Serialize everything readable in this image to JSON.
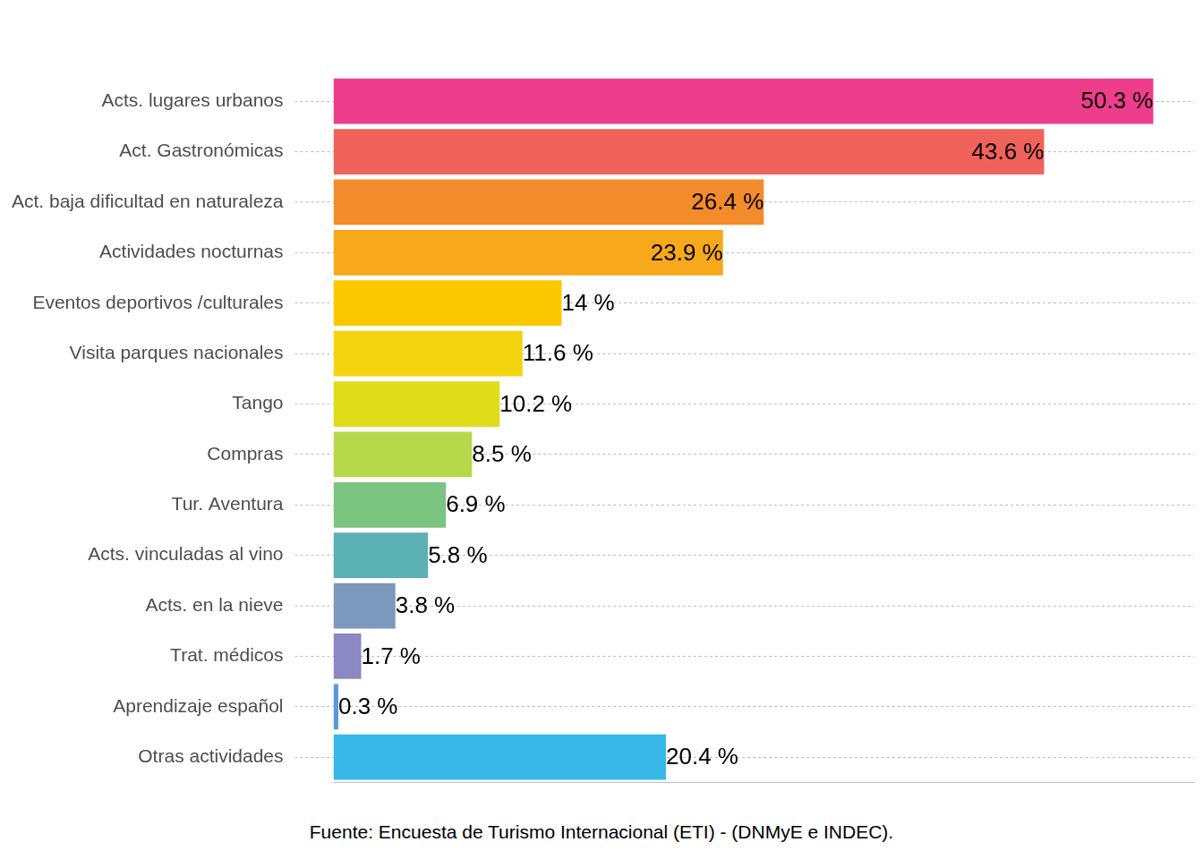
{
  "chart_data": {
    "type": "bar",
    "orientation": "horizontal",
    "caption": "Fuente: Encuesta de Turismo Internacional (ETI) - (DNMyE e INDEC).",
    "categories": [
      "Acts. lugares urbanos",
      "Act. Gastronómicas",
      "Act. baja dificultad en naturaleza",
      "Actividades nocturnas",
      "Eventos deportivos /culturales",
      "Visita parques nacionales",
      "Tango",
      "Compras",
      "Tur. Aventura",
      "Acts. vinculadas al vino",
      "Acts. en la nieve",
      "Trat. médicos",
      "Aprendizaje español",
      "Otras actividades"
    ],
    "values": [
      50.3,
      43.6,
      26.4,
      23.9,
      14,
      11.6,
      10.2,
      8.5,
      6.9,
      5.8,
      3.8,
      1.7,
      0.3,
      20.4
    ],
    "value_labels": [
      "50.3 %",
      "43.6 %",
      "26.4 %",
      "23.9 %",
      "14 %",
      "11.6 %",
      "10.2 %",
      "8.5 %",
      "6.9 %",
      "5.8 %",
      "3.8 %",
      "1.7 %",
      "0.3 %",
      "20.4 %"
    ],
    "colors": [
      "#ee3d8b",
      "#f0635a",
      "#f48b2a",
      "#f7a81b",
      "#fbc800",
      "#f2d50e",
      "#e0dc1a",
      "#b6d84b",
      "#7cc482",
      "#5bb1b3",
      "#7c98bc",
      "#8c88c4",
      "#5b9bd5",
      "#37b8e8"
    ],
    "xlim": [
      0,
      52.8
    ],
    "data_labels": true,
    "tick_labels": "y",
    "grid": true
  }
}
